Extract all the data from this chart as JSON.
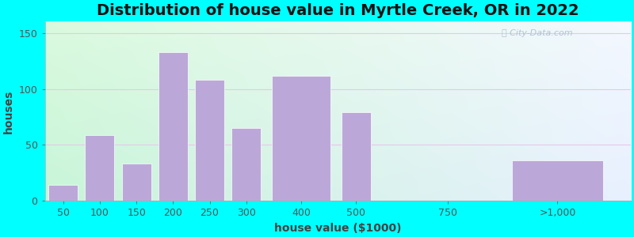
{
  "title": "Distribution of house value in Myrtle Creek, OR in 2022",
  "xlabel": "house value ($1000)",
  "ylabel": "houses",
  "bar_labels": [
    "50",
    "100",
    "150",
    "200",
    "250",
    "300",
    "400",
    "500",
    "750",
    ">1,000"
  ],
  "bar_x": [
    0,
    1,
    2,
    3,
    4,
    5,
    6.5,
    8,
    10.5,
    13.5
  ],
  "bar_widths": [
    0.8,
    0.8,
    0.8,
    0.8,
    0.8,
    0.8,
    1.6,
    0.8,
    0.0,
    2.5
  ],
  "bar_values": [
    14,
    59,
    33,
    133,
    108,
    65,
    112,
    79,
    0,
    36
  ],
  "bar_color": "#BBA8D8",
  "bar_edge_color": "#BBA8D8",
  "ylim": [
    0,
    160
  ],
  "yticks": [
    0,
    50,
    100,
    150
  ],
  "xlim": [
    -0.5,
    15.5
  ],
  "background_outer": "#00FFFF",
  "grad_topleft": "#DAFADE",
  "grad_bottomleft": "#C8F5D8",
  "grad_topright": "#F0F4FF",
  "grad_bottomright": "#E8F0FF",
  "watermark": "City-Data.com",
  "title_fontsize": 14,
  "axis_label_fontsize": 10,
  "tick_label_fontsize": 9,
  "grid_color": "#E8C8E8",
  "grid_linewidth": 0.8
}
